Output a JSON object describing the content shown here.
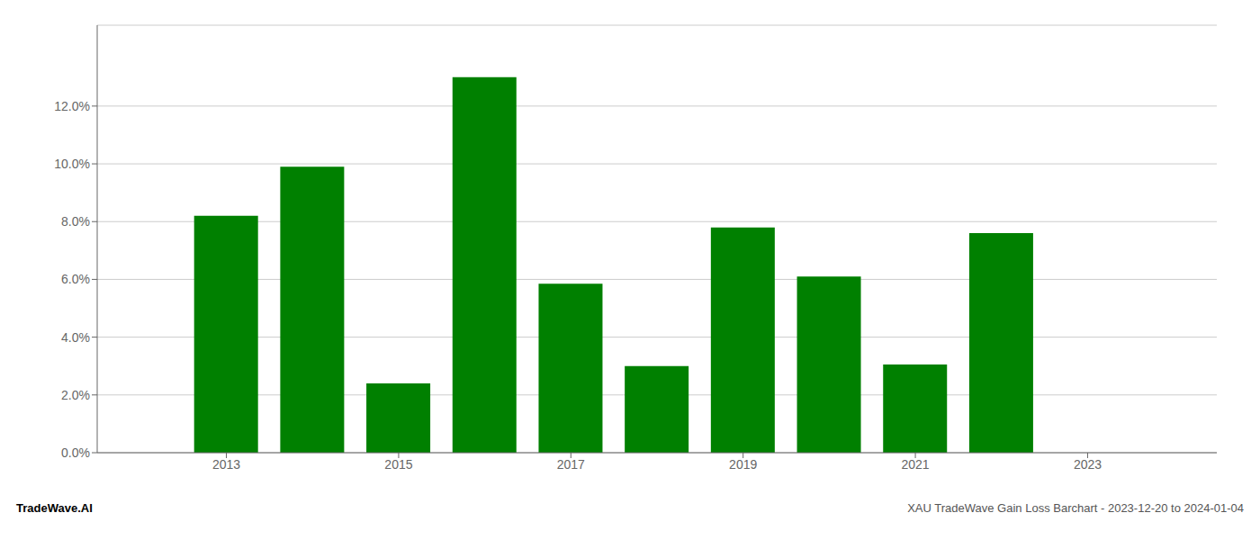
{
  "chart_data": {
    "type": "bar",
    "x": [
      2013,
      2014,
      2015,
      2016,
      2017,
      2018,
      2019,
      2020,
      2021,
      2022
    ],
    "values": [
      0.082,
      0.099,
      0.024,
      0.13,
      0.0585,
      0.03,
      0.078,
      0.061,
      0.0305,
      0.076
    ],
    "color": "#008000",
    "xlim": [
      2011.5,
      2024.5
    ],
    "xticks": [
      2013,
      2015,
      2017,
      2019,
      2021,
      2023
    ],
    "ylim": [
      0,
      0.148
    ],
    "yticks": [
      {
        "value": 0.0,
        "label": "0.0%"
      },
      {
        "value": 0.02,
        "label": "2.0%"
      },
      {
        "value": 0.04,
        "label": "4.0%"
      },
      {
        "value": 0.06,
        "label": "6.0%"
      },
      {
        "value": 0.08,
        "label": "8.0%"
      },
      {
        "value": 0.1,
        "label": "10.0%"
      },
      {
        "value": 0.12,
        "label": "12.0%"
      }
    ],
    "grid": true,
    "annotations": [
      "TradeWave.AI",
      "XAU TradeWave Gain Loss Barchart - 2023-12-20 to 2024-01-04"
    ]
  }
}
